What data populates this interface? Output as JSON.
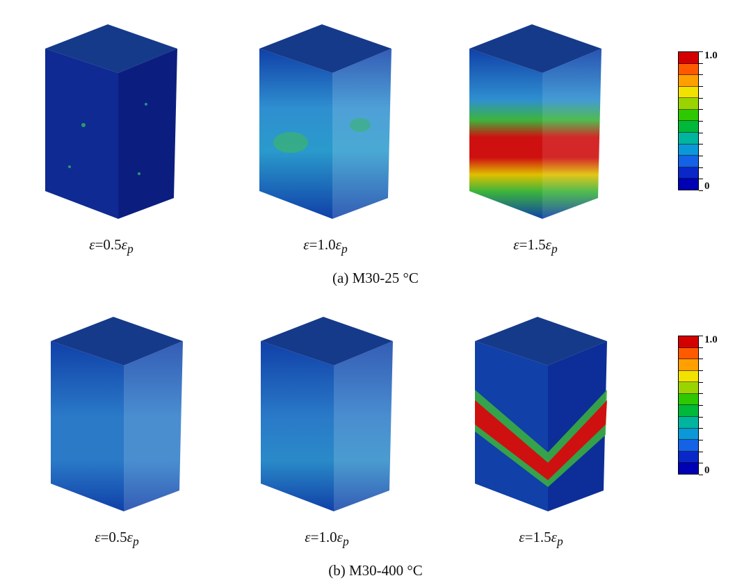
{
  "panels": [
    {
      "caption": "(a) M30-25 °C",
      "labels": [
        {
          "eps": "ε",
          "eq": "=0.5",
          "sub": "ε",
          "p": "p"
        },
        {
          "eps": "ε",
          "eq": "=1.0",
          "sub": "ε",
          "p": "p"
        },
        {
          "eps": "ε",
          "eq": "=1.5",
          "sub": "ε",
          "p": "p"
        }
      ],
      "legend": {
        "max": "1.0",
        "min": "0"
      }
    },
    {
      "caption": "(b) M30-400 °C",
      "labels": [
        {
          "eps": "ε",
          "eq": "=0.5",
          "sub": "ε",
          "p": "p"
        },
        {
          "eps": "ε",
          "eq": "=1.0",
          "sub": "ε",
          "p": "p"
        },
        {
          "eps": "ε",
          "eq": "=1.5",
          "sub": "ε",
          "p": "p"
        }
      ],
      "legend": {
        "max": "1.0",
        "min": "0"
      }
    }
  ],
  "legend_colors": [
    "#d40000",
    "#ff5a00",
    "#ffa000",
    "#f2e200",
    "#9ad400",
    "#2ec800",
    "#00b83a",
    "#00b4a0",
    "#0a98d8",
    "#1462e6",
    "#0a28c8",
    "#0000b4"
  ],
  "colors": {
    "top_face": "#123a88",
    "side_dark": "#0c1f82",
    "side_light": "#1240a8",
    "damage_red": "#cf1010",
    "damage_green": "#3cb43c",
    "damage_cyan": "#2f8fd0"
  }
}
